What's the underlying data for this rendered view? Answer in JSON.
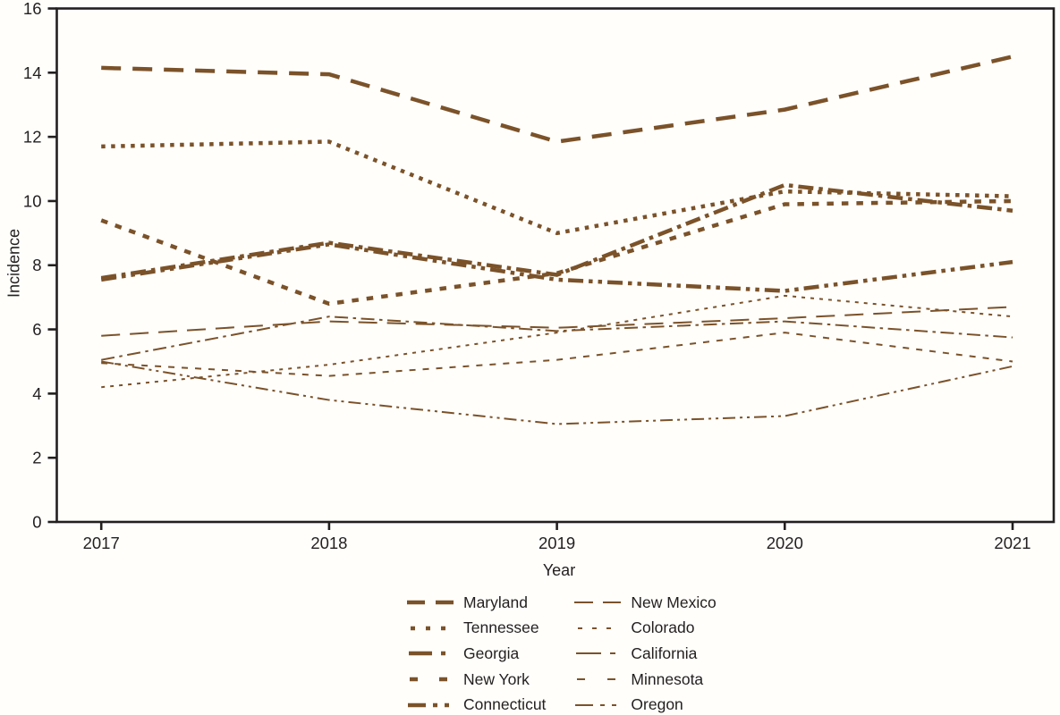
{
  "figure": {
    "background_color": "#fffefb",
    "axis_color": "#231f20",
    "text_color": "#231f20"
  },
  "chart_data": {
    "type": "line",
    "title": "",
    "xlabel": "Year",
    "ylabel": "Incidence",
    "x": [
      2017,
      2018,
      2019,
      2020,
      2021
    ],
    "x_tick_labels": [
      "2017",
      "2018",
      "2019",
      "2020",
      "2021"
    ],
    "y_tick_values": [
      0,
      2,
      4,
      6,
      8,
      10,
      12,
      14,
      16
    ],
    "ylim": [
      0,
      16
    ],
    "grid": false,
    "legend_position": "bottom",
    "line_color": "#7B5229",
    "series": [
      {
        "name": "Maryland",
        "weight": "thick",
        "dash": "long-dash",
        "values": [
          14.15,
          13.95,
          11.85,
          12.85,
          14.5
        ]
      },
      {
        "name": "Tennessee",
        "weight": "thick",
        "dash": "dot",
        "values": [
          11.7,
          11.85,
          9.0,
          10.3,
          10.15
        ]
      },
      {
        "name": "Georgia",
        "weight": "thick",
        "dash": "dash-dot",
        "values": [
          7.6,
          8.7,
          7.7,
          10.5,
          9.7
        ]
      },
      {
        "name": "New York",
        "weight": "thick",
        "dash": "short-dash",
        "values": [
          9.4,
          6.8,
          7.75,
          9.9,
          10.0
        ]
      },
      {
        "name": "Connecticut",
        "weight": "thick",
        "dash": "dash-dot-dot",
        "values": [
          7.55,
          8.65,
          7.55,
          7.2,
          8.1
        ]
      },
      {
        "name": "New Mexico",
        "weight": "thin",
        "dash": "long-dash",
        "values": [
          5.8,
          6.25,
          6.05,
          6.35,
          6.7
        ]
      },
      {
        "name": "Colorado",
        "weight": "thin",
        "dash": "dot",
        "values": [
          4.2,
          4.9,
          5.9,
          7.05,
          6.4
        ]
      },
      {
        "name": "California",
        "weight": "thin",
        "dash": "dash-dot",
        "values": [
          5.05,
          6.4,
          5.95,
          6.25,
          5.75
        ]
      },
      {
        "name": "Minnesota",
        "weight": "thin",
        "dash": "short-dash",
        "values": [
          4.95,
          4.55,
          5.05,
          5.9,
          5.0
        ]
      },
      {
        "name": "Oregon",
        "weight": "thin",
        "dash": "dash-dot-dot",
        "values": [
          5.0,
          3.8,
          3.05,
          3.3,
          4.85
        ]
      }
    ]
  }
}
